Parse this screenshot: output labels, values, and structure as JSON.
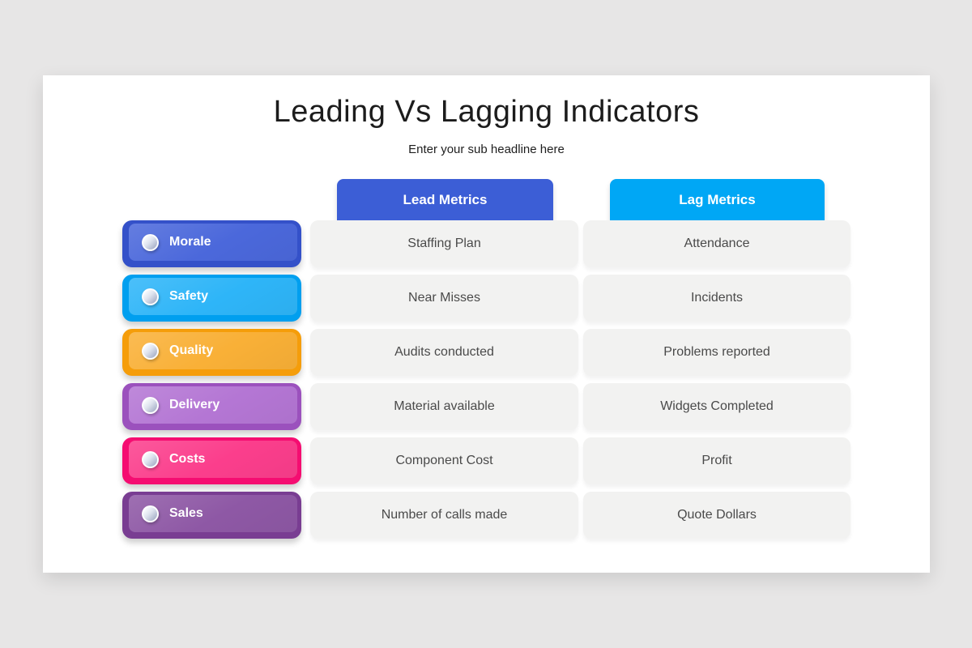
{
  "slide": {
    "title": "Leading Vs Lagging Indicators",
    "subtitle": "Enter your sub headline here",
    "background": "#FFFFFF",
    "page_background": "#E7E6E6"
  },
  "columns": {
    "lead": {
      "label": "Lead Metrics",
      "color": "#3C5ED6"
    },
    "lag": {
      "label": "Lag Metrics",
      "color": "#00A7F5"
    }
  },
  "icons": {
    "bullet": "sphere-dot"
  },
  "rows": [
    {
      "category": "Morale",
      "outer": "#3451C9",
      "inner": "#4B68DB",
      "lead": "Staffing Plan",
      "lag": "Attendance"
    },
    {
      "category": "Safety",
      "outer": "#009FEF",
      "inner": "#2EB5F8",
      "lead": "Near Misses",
      "lag": "Incidents"
    },
    {
      "category": "Quality",
      "outer": "#F59D0A",
      "inner": "#F9B037",
      "lead": "Audits conducted",
      "lag": "Problems reported"
    },
    {
      "category": "Delivery",
      "outer": "#9B51BD",
      "inner": "#B476D4",
      "lead": "Material available",
      "lag": "Widgets Completed"
    },
    {
      "category": "Costs",
      "outer": "#F50D71",
      "inner": "#FB3E8C",
      "lead": "Component Cost",
      "lag": "Profit"
    },
    {
      "category": "Sales",
      "outer": "#793D92",
      "inner": "#8E58A5",
      "lead": "Number of calls made",
      "lag": "Quote Dollars"
    }
  ]
}
